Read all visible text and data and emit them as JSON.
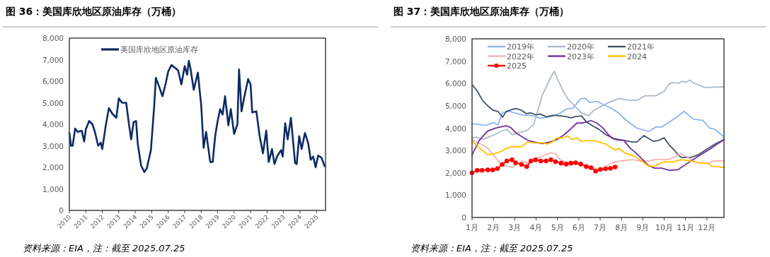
{
  "chart_data": [
    {
      "type": "line",
      "title": "图 36：美国库欣地区原油库存（万桶）",
      "legend": "top left",
      "xlim": [
        2010,
        2025.55
      ],
      "xticks": [
        2010,
        2011,
        2012,
        2013,
        2014,
        2015,
        2016,
        2017,
        2018,
        2019,
        2020,
        2021,
        2022,
        2023,
        2024,
        2025
      ],
      "ylim": [
        0,
        8000
      ],
      "yticks": [
        0,
        {
          "value": 1000,
          "label": "1,000"
        },
        {
          "value": 2000,
          "label": "2,000"
        },
        {
          "value": 3000,
          "label": "3,000"
        },
        {
          "value": 4000,
          "label": "4,000"
        },
        {
          "value": 5000,
          "label": "5,000"
        },
        {
          "value": 6000,
          "label": "6,000"
        },
        {
          "value": 7000,
          "label": "7,000"
        },
        {
          "value": 8000,
          "label": "8,000"
        }
      ],
      "series": [
        {
          "name": "美国库欣地区原油库存",
          "color": "#0d2a63",
          "x": [
            2010.0,
            2010.1,
            2010.2,
            2010.35,
            2010.5,
            2010.75,
            2010.9,
            2011.0,
            2011.2,
            2011.4,
            2011.55,
            2011.75,
            2011.9,
            2012.0,
            2012.2,
            2012.4,
            2012.6,
            2012.85,
            2013.0,
            2013.2,
            2013.45,
            2013.6,
            2013.75,
            2013.9,
            2014.05,
            2014.15,
            2014.35,
            2014.55,
            2014.7,
            2014.95,
            2015.15,
            2015.25,
            2015.45,
            2015.65,
            2015.85,
            2016.0,
            2016.2,
            2016.45,
            2016.6,
            2016.8,
            2017.0,
            2017.15,
            2017.25,
            2017.35,
            2017.55,
            2017.8,
            2018.0,
            2018.15,
            2018.3,
            2018.55,
            2018.7,
            2018.85,
            2019.0,
            2019.15,
            2019.3,
            2019.45,
            2019.65,
            2019.8,
            2020.0,
            2020.2,
            2020.3,
            2020.45,
            2020.6,
            2020.85,
            2021.0,
            2021.1,
            2021.35,
            2021.55,
            2021.75,
            2021.95,
            2022.1,
            2022.3,
            2022.45,
            2022.6,
            2022.85,
            2022.95,
            2023.1,
            2023.25,
            2023.45,
            2023.7,
            2023.8,
            2023.95,
            2024.1,
            2024.3,
            2024.5,
            2024.65,
            2024.8,
            2024.95,
            2025.1,
            2025.3,
            2025.5
          ],
          "values": [
            3600,
            3000,
            3000,
            3800,
            3650,
            3700,
            3200,
            3770,
            4150,
            4000,
            3650,
            3000,
            3150,
            2850,
            3900,
            4750,
            4500,
            4300,
            5200,
            5000,
            5000,
            4100,
            3300,
            4100,
            4150,
            3100,
            2100,
            1780,
            1950,
            2800,
            4850,
            6150,
            5750,
            5300,
            5900,
            6450,
            6750,
            6600,
            6500,
            5850,
            6700,
            6300,
            6950,
            6600,
            5600,
            6400,
            4900,
            2900,
            3650,
            2250,
            2250,
            3450,
            4150,
            4700,
            4450,
            5300,
            3950,
            4700,
            3550,
            4000,
            6550,
            4600,
            5200,
            6100,
            5850,
            4550,
            4600,
            3450,
            2650,
            3700,
            2250,
            2850,
            2150,
            2500,
            2800,
            2500,
            4050,
            3300,
            4300,
            2200,
            2150,
            3450,
            2850,
            3600,
            3100,
            2350,
            2500,
            2000,
            2550,
            2450,
            2050
          ]
        }
      ],
      "annotations": [
        "资料来源：EIA，注：截至 2025.07.25"
      ]
    },
    {
      "type": "line",
      "title": "图 37：美国库欣地区原油库存（万桶）",
      "legend": "top left",
      "xlim": [
        1,
        12.8
      ],
      "xticks": [
        {
          "value": 1,
          "label": "1月"
        },
        {
          "value": 2,
          "label": "2月"
        },
        {
          "value": 3,
          "label": "3月"
        },
        {
          "value": 4,
          "label": "4月"
        },
        {
          "value": 5,
          "label": "5月"
        },
        {
          "value": 6,
          "label": "6月"
        },
        {
          "value": 7,
          "label": "7月"
        },
        {
          "value": 8,
          "label": "8月"
        },
        {
          "value": 9,
          "label": "9月"
        },
        {
          "value": 10,
          "label": "10月"
        },
        {
          "value": 11,
          "label": "11月"
        },
        {
          "value": 12,
          "label": "12月"
        }
      ],
      "ylim": [
        0,
        8000
      ],
      "yticks": [
        0,
        {
          "value": 1000,
          "label": "1,000"
        },
        {
          "value": 2000,
          "label": "2,000"
        },
        {
          "value": 3000,
          "label": "3,000"
        },
        {
          "value": 4000,
          "label": "4,000"
        },
        {
          "value": 5000,
          "label": "5,000"
        },
        {
          "value": 6000,
          "label": "6,000"
        },
        {
          "value": 7000,
          "label": "7,000"
        },
        {
          "value": 8000,
          "label": "8,000"
        }
      ],
      "series": [
        {
          "name": "2019年",
          "color": "#8db4f0",
          "x": [
            1,
            1.66,
            1.99,
            2.21,
            2.43,
            2.76,
            3.32,
            3.87,
            4.2,
            4.64,
            5.08,
            5.41,
            5.74,
            6.07,
            6.29,
            6.51,
            6.84,
            7.17,
            7.5,
            7.84,
            8.28,
            8.72,
            9.27,
            9.6,
            9.88,
            10.59,
            10.92,
            11.36,
            11.8,
            12.14,
            12.36,
            12.8
          ],
          "values": [
            4200,
            4120,
            4250,
            4150,
            4700,
            4750,
            4600,
            4550,
            4450,
            4500,
            4650,
            4850,
            4900,
            5300,
            5350,
            5150,
            5200,
            5050,
            4900,
            4700,
            4300,
            4000,
            3850,
            4050,
            4050,
            4500,
            4750,
            4400,
            4350,
            4000,
            3950,
            3600
          ]
        },
        {
          "name": "2020年",
          "color": "#adb9ca",
          "x": [
            1,
            1.22,
            1.5,
            2.05,
            2.32,
            2.65,
            2.87,
            3.2,
            3.6,
            3.9,
            4.3,
            4.7,
            4.85,
            5.0,
            5.3,
            5.5,
            6.1,
            6.45,
            6.7,
            7.1,
            7.4,
            7.9,
            8.3,
            8.75,
            9.1,
            9.6,
            10.0,
            10.2,
            10.4,
            10.6,
            10.85,
            11.0,
            11.2,
            11.4,
            11.6,
            11.9,
            12.8
          ],
          "values": [
            3550,
            3600,
            3500,
            3700,
            3850,
            3950,
            3700,
            3800,
            3900,
            4200,
            5500,
            6300,
            6550,
            6200,
            5600,
            5300,
            4700,
            4550,
            4800,
            5000,
            5150,
            5330,
            5250,
            5250,
            5450,
            5450,
            5650,
            5950,
            6050,
            6000,
            6100,
            6050,
            6150,
            6000,
            5950,
            5820,
            5850
          ]
        },
        {
          "name": "2021年",
          "color": "#44546a",
          "x": [
            1,
            1.22,
            1.5,
            1.77,
            1.99,
            2.21,
            2.43,
            2.6,
            2.76,
            3.04,
            3.32,
            3.54,
            3.76,
            3.98,
            4.2,
            4.47,
            4.75,
            5.08,
            5.41,
            5.63,
            5.85,
            6.13,
            6.35,
            6.62,
            6.95,
            7.28,
            7.62,
            8.06,
            8.5,
            8.72,
            9.05,
            9.49,
            9.71,
            9.99,
            10.26,
            10.48,
            10.65,
            10.81,
            11.25,
            11.58,
            11.92,
            12.36,
            12.8
          ],
          "values": [
            5950,
            5700,
            5230,
            4970,
            4800,
            4750,
            4490,
            4750,
            4800,
            4880,
            4800,
            4650,
            4680,
            4600,
            4630,
            4510,
            4570,
            4560,
            4520,
            4460,
            4520,
            4550,
            4280,
            4120,
            3940,
            3700,
            3540,
            3460,
            3380,
            3380,
            3670,
            3410,
            3440,
            3570,
            3220,
            3010,
            2800,
            2690,
            2690,
            2800,
            3010,
            3280,
            3490
          ]
        },
        {
          "name": "2022年",
          "color": "#f8b4b4",
          "x": [
            1,
            1.33,
            1.72,
            2.05,
            2.32,
            2.54,
            2.87,
            3.15,
            3.37,
            3.59,
            3.87,
            4.2,
            4.42,
            4.69,
            4.91,
            5.13,
            5.41,
            5.74,
            6.07,
            6.51,
            6.84,
            7.17,
            7.5,
            7.95,
            8.5,
            8.83,
            9.27,
            9.71,
            10.15,
            10.48,
            10.76,
            11.03,
            11.36,
            11.69,
            12.03,
            12.3,
            12.8
          ],
          "values": [
            3490,
            3330,
            3120,
            2740,
            2430,
            2320,
            2240,
            2430,
            2530,
            2430,
            2640,
            2690,
            2800,
            2900,
            2850,
            2590,
            2480,
            2430,
            2370,
            2270,
            2160,
            2210,
            2430,
            2530,
            2590,
            2530,
            2530,
            2610,
            2590,
            2690,
            2850,
            2740,
            2530,
            2430,
            2430,
            2530,
            2530
          ]
        },
        {
          "name": "2023年",
          "color": "#7030a0",
          "x": [
            1,
            1.33,
            1.72,
            2.05,
            2.32,
            2.6,
            2.82,
            3.09,
            3.37,
            3.65,
            3.98,
            4.31,
            4.64,
            4.97,
            5.3,
            5.63,
            5.91,
            6.18,
            6.57,
            6.84,
            7.12,
            7.39,
            7.62,
            7.84,
            8.11,
            8.39,
            8.72,
            9.05,
            9.27,
            9.55,
            9.88,
            10.26,
            10.65,
            10.92,
            11.25,
            11.69,
            12.14,
            12.47,
            12.8
          ],
          "values": [
            2800,
            3440,
            3860,
            3990,
            4050,
            4110,
            4020,
            3760,
            3600,
            3440,
            3360,
            3310,
            3380,
            3490,
            3700,
            3970,
            4230,
            4230,
            4340,
            4230,
            4020,
            3700,
            3520,
            3470,
            3460,
            3120,
            2850,
            2530,
            2320,
            2210,
            2210,
            2110,
            2140,
            2320,
            2530,
            2800,
            3060,
            3280,
            3490
          ]
        },
        {
          "name": "2024",
          "color": "#ffc000",
          "x": [
            1,
            1.33,
            1.72,
            2.05,
            2.38,
            2.65,
            2.93,
            3.32,
            3.59,
            3.98,
            4.31,
            4.53,
            4.75,
            4.97,
            5.24,
            5.47,
            5.69,
            5.91,
            6.13,
            6.4,
            6.73,
            7.06,
            7.28,
            7.67,
            7.89,
            8.17,
            8.61,
            8.94,
            9.32,
            9.6,
            9.99,
            10.37,
            10.81,
            11.25,
            11.69,
            12.03,
            12.25,
            12.8
          ],
          "values": [
            3440,
            3120,
            2820,
            2850,
            2960,
            3120,
            3170,
            3170,
            3380,
            3330,
            3350,
            3280,
            3380,
            3560,
            3560,
            3650,
            3490,
            3560,
            3410,
            3440,
            3440,
            3350,
            3280,
            3030,
            3090,
            2880,
            2740,
            2530,
            2270,
            2320,
            2500,
            2480,
            2590,
            2530,
            2430,
            2430,
            2290,
            2240
          ]
        },
        {
          "name": "2025",
          "color": "#ff0000",
          "marker": "circle",
          "x": [
            1,
            1.24,
            1.47,
            1.74,
            1.97,
            2.19,
            2.41,
            2.63,
            2.87,
            3.04,
            3.32,
            3.56,
            3.76,
            3.98,
            4.22,
            4.47,
            4.69,
            4.91,
            5.17,
            5.41,
            5.63,
            5.85,
            6.09,
            6.35,
            6.57,
            6.79,
            7.01,
            7.25,
            7.48,
            7.7
          ],
          "values": [
            2000,
            2110,
            2110,
            2130,
            2130,
            2190,
            2370,
            2530,
            2580,
            2450,
            2370,
            2280,
            2530,
            2580,
            2530,
            2530,
            2580,
            2500,
            2430,
            2390,
            2430,
            2450,
            2390,
            2280,
            2230,
            2070,
            2150,
            2180,
            2200,
            2260
          ]
        }
      ],
      "annotations": [
        "资料来源：EIA，注：截至 2025.07.25"
      ]
    }
  ]
}
